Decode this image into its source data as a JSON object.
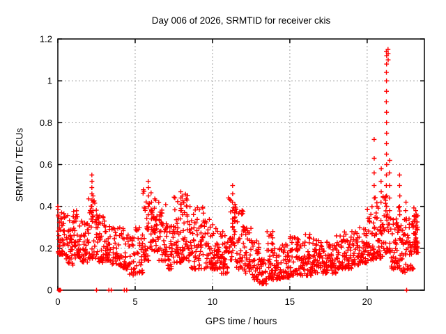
{
  "chart_data": {
    "type": "scatter",
    "title": "Day 006 of 2026, SRMTID for receiver ckis",
    "xlabel": "GPS time / hours",
    "ylabel": "SRMTID / TECUs",
    "xlim": [
      0,
      23.7
    ],
    "ylim": [
      0,
      1.2
    ],
    "xticks": [
      0,
      5,
      10,
      15,
      20
    ],
    "yticks": [
      0,
      0.2,
      0.4,
      0.6,
      0.8,
      1,
      1.2
    ],
    "grid": true,
    "legend": "none",
    "marker": "plus",
    "marker_color": "#ff0000",
    "grid_color": "#a0a0a0",
    "border_color": "#000000",
    "seed": 20260106,
    "envelope_bins": [
      [
        0.0,
        0.5,
        0.17,
        0.37,
        44
      ],
      [
        0.5,
        1.0,
        0.12,
        0.36,
        40
      ],
      [
        1.0,
        1.5,
        0.15,
        0.38,
        40
      ],
      [
        1.5,
        2.0,
        0.13,
        0.33,
        36
      ],
      [
        2.0,
        2.5,
        0.15,
        0.45,
        34
      ],
      [
        2.5,
        3.0,
        0.13,
        0.36,
        38
      ],
      [
        3.0,
        3.5,
        0.14,
        0.34,
        34
      ],
      [
        3.5,
        4.0,
        0.12,
        0.3,
        30
      ],
      [
        4.0,
        4.5,
        0.1,
        0.3,
        30
      ],
      [
        4.5,
        5.0,
        0.07,
        0.27,
        30
      ],
      [
        5.0,
        5.5,
        0.08,
        0.3,
        30
      ],
      [
        5.5,
        6.0,
        0.14,
        0.5,
        34
      ],
      [
        6.0,
        6.5,
        0.18,
        0.48,
        40
      ],
      [
        6.5,
        7.0,
        0.14,
        0.42,
        36
      ],
      [
        7.0,
        7.5,
        0.1,
        0.32,
        36
      ],
      [
        7.5,
        8.0,
        0.13,
        0.45,
        40
      ],
      [
        8.0,
        8.5,
        0.14,
        0.46,
        40
      ],
      [
        8.5,
        9.0,
        0.1,
        0.4,
        36
      ],
      [
        9.0,
        9.5,
        0.1,
        0.4,
        36
      ],
      [
        9.5,
        10.0,
        0.1,
        0.34,
        36
      ],
      [
        10.0,
        10.5,
        0.1,
        0.32,
        40
      ],
      [
        10.5,
        11.0,
        0.08,
        0.28,
        40
      ],
      [
        11.0,
        11.5,
        0.13,
        0.45,
        36
      ],
      [
        11.5,
        12.0,
        0.1,
        0.4,
        36
      ],
      [
        12.0,
        12.5,
        0.08,
        0.3,
        36
      ],
      [
        12.5,
        13.0,
        0.05,
        0.24,
        36
      ],
      [
        13.0,
        13.5,
        0.03,
        0.15,
        36
      ],
      [
        13.5,
        14.0,
        0.05,
        0.28,
        36
      ],
      [
        14.0,
        14.5,
        0.05,
        0.2,
        36
      ],
      [
        14.5,
        15.0,
        0.06,
        0.22,
        36
      ],
      [
        15.0,
        15.5,
        0.07,
        0.26,
        36
      ],
      [
        15.5,
        16.0,
        0.07,
        0.25,
        36
      ],
      [
        16.0,
        16.5,
        0.07,
        0.27,
        36
      ],
      [
        16.5,
        17.0,
        0.08,
        0.25,
        36
      ],
      [
        17.0,
        17.5,
        0.08,
        0.23,
        36
      ],
      [
        17.5,
        18.0,
        0.08,
        0.22,
        36
      ],
      [
        18.0,
        18.5,
        0.1,
        0.26,
        36
      ],
      [
        18.5,
        19.0,
        0.1,
        0.28,
        36
      ],
      [
        19.0,
        19.5,
        0.12,
        0.28,
        36
      ],
      [
        19.5,
        20.0,
        0.13,
        0.3,
        36
      ],
      [
        20.0,
        20.5,
        0.14,
        0.4,
        40
      ],
      [
        20.5,
        21.0,
        0.15,
        0.45,
        40
      ],
      [
        21.0,
        21.5,
        0.18,
        0.45,
        40
      ],
      [
        21.5,
        22.0,
        0.1,
        0.35,
        40
      ],
      [
        22.0,
        22.5,
        0.08,
        0.4,
        40
      ],
      [
        22.5,
        23.0,
        0.1,
        0.35,
        36
      ],
      [
        23.0,
        23.3,
        0.18,
        0.4,
        40
      ]
    ],
    "spike_columns": [
      [
        2.2,
        [
          0.37,
          0.4,
          0.43,
          0.46,
          0.49,
          0.52,
          0.55
        ]
      ],
      [
        2.27,
        [
          0.35,
          0.38,
          0.42,
          0.45
        ]
      ],
      [
        5.85,
        [
          0.32,
          0.36,
          0.4,
          0.45,
          0.49,
          0.52
        ]
      ],
      [
        6.05,
        [
          0.3,
          0.34,
          0.38,
          0.42
        ]
      ],
      [
        7.95,
        [
          0.38,
          0.41,
          0.44,
          0.47
        ]
      ],
      [
        8.35,
        [
          0.36,
          0.4,
          0.43
        ]
      ],
      [
        11.3,
        [
          0.3,
          0.34,
          0.38,
          0.42,
          0.46,
          0.5
        ]
      ],
      [
        11.45,
        [
          0.28,
          0.33,
          0.37,
          0.41
        ]
      ],
      [
        13.9,
        [
          0.18,
          0.22,
          0.25,
          0.28
        ]
      ],
      [
        20.45,
        [
          0.44,
          0.5,
          0.56,
          0.63,
          0.72
        ]
      ],
      [
        20.9,
        [
          0.42,
          0.47,
          0.52,
          0.58
        ]
      ],
      [
        21.25,
        [
          0.35,
          0.4,
          0.45,
          0.5,
          0.55,
          0.6,
          0.65,
          0.7,
          0.75,
          0.8,
          0.85,
          0.9,
          0.95,
          1.0,
          1.04,
          1.08,
          1.12,
          1.14
        ]
      ],
      [
        21.35,
        [
          1.1,
          1.13,
          1.15
        ]
      ],
      [
        21.45,
        [
          0.38,
          0.44,
          0.5,
          0.56,
          0.62
        ]
      ],
      [
        22.1,
        [
          0.36,
          0.4,
          0.45,
          0.5,
          0.55
        ]
      ],
      [
        22.5,
        [
          0.3,
          0.34,
          0.38,
          0.42
        ]
      ],
      [
        23.15,
        [
          0.25,
          0.3,
          0.35,
          0.38
        ]
      ]
    ],
    "zero_markers": [
      0.08,
      0.12,
      0.16,
      2.5,
      3.3,
      3.45,
      4.3,
      4.45,
      22.55
    ],
    "origin_square": [
      0.1,
      0
    ],
    "edge_points": [
      [
        0,
        0.4
      ],
      [
        0.02,
        0.385
      ],
      [
        0.05,
        0.35
      ]
    ]
  }
}
